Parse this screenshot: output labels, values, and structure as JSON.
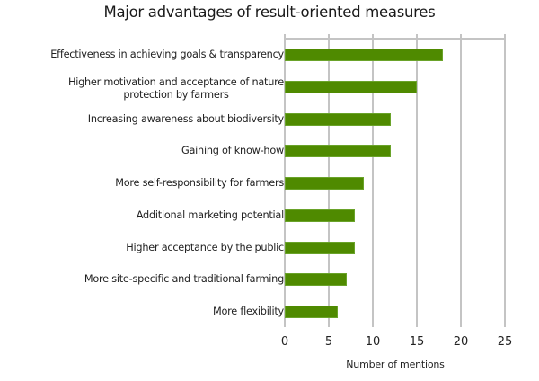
{
  "chart_data": {
    "type": "bar",
    "orientation": "horizontal",
    "title": "Major advantages of result-oriented measures",
    "xlabel": "Number of mentions",
    "ylabel": "",
    "categories": [
      "Effectiveness in achieving goals & transparency",
      "Higher motivation and acceptance of nature protection by farmers",
      "Increasing awareness about biodiversity",
      "Gaining of know-how",
      "More self-responsibility for farmers",
      "Additional marketing potential",
      "Higher acceptance by the public",
      "More site-specific and traditional farming",
      "More flexibility"
    ],
    "category_display": [
      [
        "Effectiveness in achieving goals & transparency"
      ],
      [
        "Higher motivation and acceptance of nature",
        "protection by farmers"
      ],
      [
        "Increasing awareness about biodiversity"
      ],
      [
        "Gaining of know-how"
      ],
      [
        "More self-responsibility for farmers"
      ],
      [
        "Additional marketing potential"
      ],
      [
        "Higher acceptance by the public"
      ],
      [
        "More site-specific and traditional farming"
      ],
      [
        "More flexibility"
      ]
    ],
    "values": [
      18,
      15,
      12,
      12,
      9,
      8,
      8,
      7,
      6
    ],
    "xlim": [
      0,
      25
    ],
    "xticks": [
      0,
      5,
      10,
      15,
      20,
      25
    ],
    "xtick_labels": [
      "0",
      "5",
      "10",
      "15",
      "20",
      "25"
    ],
    "grid": true,
    "legend": null,
    "bar_color": "#4f8a00",
    "grid_color": "#c4c4c4"
  }
}
